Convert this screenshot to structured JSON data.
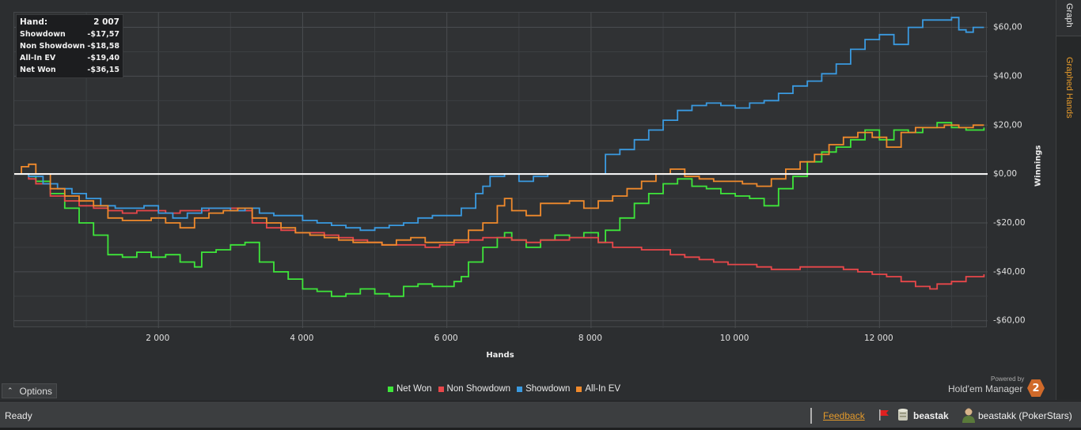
{
  "hud": {
    "rows": [
      {
        "label": "Hand:",
        "value": "2 007"
      },
      {
        "label": "Showdown",
        "value": "-$17,57"
      },
      {
        "label": "Non Showdown",
        "value": "-$18,58"
      },
      {
        "label": "All-In EV",
        "value": "-$19,40"
      },
      {
        "label": "Net Won",
        "value": "-$36,15"
      }
    ]
  },
  "tabs": {
    "graph": "Graph",
    "graphed_hands": "Graphed Hands"
  },
  "axes": {
    "xlabel": "Hands",
    "ylabel": "Winnings"
  },
  "options": {
    "label": "Options",
    "icon": "chevron-up-icon"
  },
  "legend": [
    {
      "label": "Net Won",
      "color": "#3ee63a"
    },
    {
      "label": "Non Showdown",
      "color": "#e8474a"
    },
    {
      "label": "Showdown",
      "color": "#3a9ae0"
    },
    {
      "label": "All-In EV",
      "color": "#f08a2c"
    }
  ],
  "brand": {
    "powered_by": "Powered by",
    "name": "Hold'em Manager",
    "logo_text": "2"
  },
  "status": {
    "text": "Ready",
    "feedback": "Feedback",
    "user": "beastak",
    "player": "beastakk (PokerStars)"
  },
  "chart_data": {
    "type": "line",
    "xlabel": "Hands",
    "ylabel": "Winnings",
    "xlim": [
      0,
      13500
    ],
    "ylim": [
      -63,
      66
    ],
    "x_ticks": [
      2000,
      4000,
      6000,
      8000,
      10000,
      12000
    ],
    "x_tick_labels": [
      "2 000",
      "4 000",
      "6 000",
      "8 000",
      "10 000",
      "12 000"
    ],
    "y_ticks": [
      60,
      40,
      20,
      0,
      -20,
      -40,
      -60
    ],
    "y_tick_labels": [
      "$60,00",
      "$40,00",
      "$20,00",
      "$0,00",
      "-$20,00",
      "-$40,00",
      "-$60,00"
    ],
    "grid": true,
    "legend_position": "bottom",
    "zero_line": true,
    "series": [
      {
        "name": "Net Won",
        "color": "#3ee63a",
        "points": [
          [
            0,
            0
          ],
          [
            200,
            -1
          ],
          [
            300,
            -3
          ],
          [
            500,
            -8
          ],
          [
            700,
            -14
          ],
          [
            900,
            -20
          ],
          [
            1100,
            -25
          ],
          [
            1300,
            -33
          ],
          [
            1500,
            -34
          ],
          [
            1700,
            -32
          ],
          [
            1900,
            -34
          ],
          [
            2100,
            -33
          ],
          [
            2300,
            -36
          ],
          [
            2500,
            -38
          ],
          [
            2600,
            -32
          ],
          [
            2800,
            -31
          ],
          [
            3000,
            -29
          ],
          [
            3200,
            -28
          ],
          [
            3400,
            -36
          ],
          [
            3600,
            -40
          ],
          [
            3800,
            -43
          ],
          [
            4000,
            -47
          ],
          [
            4200,
            -48
          ],
          [
            4400,
            -50
          ],
          [
            4600,
            -49
          ],
          [
            4800,
            -47
          ],
          [
            5000,
            -49
          ],
          [
            5200,
            -50
          ],
          [
            5400,
            -46
          ],
          [
            5600,
            -45
          ],
          [
            5800,
            -46
          ],
          [
            6000,
            -46
          ],
          [
            6100,
            -44
          ],
          [
            6200,
            -42
          ],
          [
            6300,
            -36
          ],
          [
            6500,
            -30
          ],
          [
            6700,
            -26
          ],
          [
            6800,
            -24
          ],
          [
            6900,
            -27
          ],
          [
            7100,
            -30
          ],
          [
            7300,
            -27
          ],
          [
            7500,
            -25
          ],
          [
            7700,
            -26
          ],
          [
            7900,
            -24
          ],
          [
            8100,
            -28
          ],
          [
            8200,
            -23
          ],
          [
            8400,
            -18
          ],
          [
            8600,
            -12
          ],
          [
            8800,
            -8
          ],
          [
            9000,
            -4
          ],
          [
            9200,
            -2
          ],
          [
            9400,
            -5
          ],
          [
            9600,
            -6
          ],
          [
            9800,
            -8
          ],
          [
            10000,
            -9
          ],
          [
            10200,
            -10
          ],
          [
            10400,
            -13
          ],
          [
            10600,
            -6
          ],
          [
            10800,
            -1
          ],
          [
            11000,
            5
          ],
          [
            11200,
            9
          ],
          [
            11400,
            11
          ],
          [
            11600,
            14
          ],
          [
            11800,
            18
          ],
          [
            12000,
            14
          ],
          [
            12200,
            18
          ],
          [
            12400,
            17
          ],
          [
            12600,
            19
          ],
          [
            12800,
            21
          ],
          [
            13000,
            19
          ],
          [
            13200,
            18
          ],
          [
            13450,
            19
          ]
        ]
      },
      {
        "name": "Non Showdown",
        "color": "#e8474a",
        "points": [
          [
            0,
            0
          ],
          [
            200,
            -2
          ],
          [
            300,
            -4
          ],
          [
            500,
            -9
          ],
          [
            700,
            -11
          ],
          [
            900,
            -13
          ],
          [
            1100,
            -14
          ],
          [
            1300,
            -15
          ],
          [
            1500,
            -16
          ],
          [
            1700,
            -15
          ],
          [
            1900,
            -15
          ],
          [
            2100,
            -16
          ],
          [
            2300,
            -15
          ],
          [
            2500,
            -15
          ],
          [
            2700,
            -14
          ],
          [
            2900,
            -14
          ],
          [
            3100,
            -15
          ],
          [
            3300,
            -20
          ],
          [
            3500,
            -22
          ],
          [
            3700,
            -23
          ],
          [
            3900,
            -24
          ],
          [
            4100,
            -24
          ],
          [
            4300,
            -25
          ],
          [
            4500,
            -26
          ],
          [
            4700,
            -27
          ],
          [
            4900,
            -28
          ],
          [
            5100,
            -29
          ],
          [
            5300,
            -29
          ],
          [
            5500,
            -29
          ],
          [
            5700,
            -30
          ],
          [
            5900,
            -29
          ],
          [
            6100,
            -28
          ],
          [
            6300,
            -27
          ],
          [
            6500,
            -26
          ],
          [
            6700,
            -26
          ],
          [
            6900,
            -27
          ],
          [
            7100,
            -28
          ],
          [
            7300,
            -27
          ],
          [
            7500,
            -27
          ],
          [
            7700,
            -26
          ],
          [
            7900,
            -26
          ],
          [
            8100,
            -28
          ],
          [
            8300,
            -30
          ],
          [
            8500,
            -30
          ],
          [
            8700,
            -31
          ],
          [
            8900,
            -31
          ],
          [
            9100,
            -33
          ],
          [
            9300,
            -34
          ],
          [
            9500,
            -35
          ],
          [
            9700,
            -36
          ],
          [
            9900,
            -37
          ],
          [
            10100,
            -37
          ],
          [
            10300,
            -38
          ],
          [
            10500,
            -39
          ],
          [
            10700,
            -39
          ],
          [
            10900,
            -38
          ],
          [
            11100,
            -38
          ],
          [
            11300,
            -38
          ],
          [
            11500,
            -39
          ],
          [
            11700,
            -40
          ],
          [
            11900,
            -41
          ],
          [
            12100,
            -42
          ],
          [
            12300,
            -44
          ],
          [
            12500,
            -46
          ],
          [
            12700,
            -47
          ],
          [
            12800,
            -45
          ],
          [
            13000,
            -44
          ],
          [
            13200,
            -42
          ],
          [
            13450,
            -41
          ]
        ]
      },
      {
        "name": "Showdown",
        "color": "#3a9ae0",
        "points": [
          [
            0,
            0
          ],
          [
            200,
            -1
          ],
          [
            400,
            -4
          ],
          [
            600,
            -6
          ],
          [
            800,
            -8
          ],
          [
            1000,
            -10
          ],
          [
            1200,
            -13
          ],
          [
            1400,
            -14
          ],
          [
            1600,
            -14
          ],
          [
            1800,
            -13
          ],
          [
            2000,
            -16
          ],
          [
            2200,
            -18
          ],
          [
            2400,
            -16
          ],
          [
            2600,
            -14
          ],
          [
            2800,
            -14
          ],
          [
            3000,
            -15
          ],
          [
            3200,
            -14
          ],
          [
            3400,
            -16
          ],
          [
            3600,
            -17
          ],
          [
            3800,
            -17
          ],
          [
            4000,
            -19
          ],
          [
            4200,
            -20
          ],
          [
            4400,
            -21
          ],
          [
            4600,
            -22
          ],
          [
            4800,
            -23
          ],
          [
            5000,
            -22
          ],
          [
            5200,
            -21
          ],
          [
            5400,
            -20
          ],
          [
            5600,
            -18
          ],
          [
            5800,
            -17
          ],
          [
            6000,
            -17
          ],
          [
            6200,
            -14
          ],
          [
            6400,
            -8
          ],
          [
            6500,
            -5
          ],
          [
            6600,
            -1
          ],
          [
            6800,
            0
          ],
          [
            7000,
            -3
          ],
          [
            7200,
            -1
          ],
          [
            7400,
            0
          ],
          [
            7600,
            0
          ],
          [
            7800,
            0
          ],
          [
            8000,
            0
          ],
          [
            8200,
            8
          ],
          [
            8400,
            10
          ],
          [
            8600,
            14
          ],
          [
            8800,
            18
          ],
          [
            9000,
            22
          ],
          [
            9200,
            26
          ],
          [
            9400,
            28
          ],
          [
            9600,
            29
          ],
          [
            9800,
            28
          ],
          [
            10000,
            27
          ],
          [
            10200,
            29
          ],
          [
            10400,
            30
          ],
          [
            10600,
            33
          ],
          [
            10800,
            36
          ],
          [
            11000,
            38
          ],
          [
            11200,
            41
          ],
          [
            11400,
            45
          ],
          [
            11600,
            51
          ],
          [
            11800,
            55
          ],
          [
            12000,
            57
          ],
          [
            12200,
            53
          ],
          [
            12400,
            60
          ],
          [
            12600,
            63
          ],
          [
            12800,
            63
          ],
          [
            13000,
            64
          ],
          [
            13100,
            59
          ],
          [
            13200,
            58
          ],
          [
            13300,
            60
          ],
          [
            13450,
            60
          ]
        ]
      },
      {
        "name": "All-In EV",
        "color": "#f08a2c",
        "points": [
          [
            0,
            0
          ],
          [
            100,
            3
          ],
          [
            200,
            4
          ],
          [
            300,
            0
          ],
          [
            500,
            -6
          ],
          [
            700,
            -9
          ],
          [
            900,
            -11
          ],
          [
            1100,
            -13
          ],
          [
            1300,
            -18
          ],
          [
            1500,
            -19
          ],
          [
            1700,
            -19
          ],
          [
            1900,
            -18
          ],
          [
            2100,
            -20
          ],
          [
            2300,
            -22
          ],
          [
            2500,
            -18
          ],
          [
            2700,
            -16
          ],
          [
            2900,
            -15
          ],
          [
            3100,
            -14
          ],
          [
            3300,
            -18
          ],
          [
            3500,
            -20
          ],
          [
            3700,
            -22
          ],
          [
            3900,
            -24
          ],
          [
            4100,
            -25
          ],
          [
            4300,
            -26
          ],
          [
            4500,
            -27
          ],
          [
            4700,
            -28
          ],
          [
            4900,
            -28
          ],
          [
            5100,
            -29
          ],
          [
            5300,
            -27
          ],
          [
            5500,
            -26
          ],
          [
            5700,
            -28
          ],
          [
            5900,
            -28
          ],
          [
            6100,
            -27
          ],
          [
            6300,
            -23
          ],
          [
            6500,
            -20
          ],
          [
            6700,
            -13
          ],
          [
            6800,
            -10
          ],
          [
            6900,
            -15
          ],
          [
            7100,
            -17
          ],
          [
            7300,
            -12
          ],
          [
            7500,
            -12
          ],
          [
            7700,
            -11
          ],
          [
            7900,
            -14
          ],
          [
            8100,
            -11
          ],
          [
            8300,
            -9
          ],
          [
            8500,
            -6
          ],
          [
            8700,
            -3
          ],
          [
            8900,
            0
          ],
          [
            9100,
            2
          ],
          [
            9300,
            -1
          ],
          [
            9500,
            -2
          ],
          [
            9700,
            -3
          ],
          [
            9900,
            -3
          ],
          [
            10100,
            -4
          ],
          [
            10300,
            -5
          ],
          [
            10500,
            -2
          ],
          [
            10700,
            2
          ],
          [
            10900,
            5
          ],
          [
            11100,
            8
          ],
          [
            11300,
            12
          ],
          [
            11500,
            15
          ],
          [
            11700,
            17
          ],
          [
            11900,
            15
          ],
          [
            12100,
            11
          ],
          [
            12300,
            17
          ],
          [
            12500,
            19
          ],
          [
            12700,
            19
          ],
          [
            12900,
            20
          ],
          [
            13100,
            19
          ],
          [
            13300,
            20
          ],
          [
            13450,
            20
          ]
        ]
      }
    ]
  }
}
